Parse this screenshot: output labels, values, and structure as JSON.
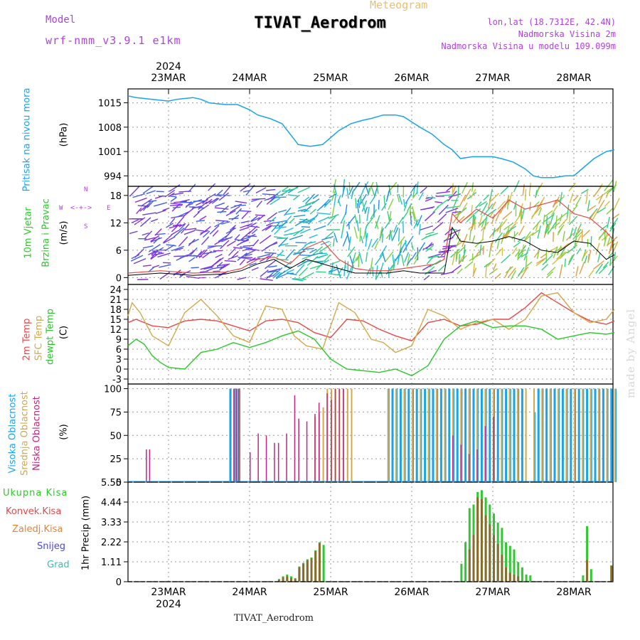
{
  "header": {
    "model_label": "Model",
    "model_name": "wrf-nmm_v3.9.1  e1km",
    "title": "TIVAT_Aerodrom",
    "meteogram": "Meteogram",
    "lonlat": "lon,lat (18.7312E, 42.4N)",
    "elev": "Nadmorska Visina 2m",
    "model_elev": "Nadmorska Visina u modelu 109.099m",
    "year_top": "2024",
    "year_bottom": "2024",
    "footer_station": "TIVAT_Aerodrom",
    "credit": "made by Angel"
  },
  "date_labels": [
    "23MAR",
    "24MAR",
    "25MAR",
    "26MAR",
    "27MAR",
    "28MAR"
  ],
  "panel_labels": {
    "pressure": [
      "Pritisak na nivou mora",
      "(hPa)"
    ],
    "wind": [
      "10m Vjetar",
      "Brzina i Pravac",
      "(m/s)"
    ],
    "wind_compass": {
      "n": "N",
      "s": "S",
      "w": "W",
      "e": "E"
    },
    "temp": [
      "2m Temp",
      "SFC Temp",
      "dewpt Temp",
      "(C)"
    ],
    "cloud": [
      "Visoka Oblacnost",
      "Srednja Oblacnost",
      "Niska Oblacnost",
      "(%)"
    ],
    "precip": [
      "Ukupna Kisa",
      "Konvek.Kisa",
      "Zaledj.Kisa",
      "Snijeg",
      "Grad",
      "1hr Precip (mm)"
    ]
  },
  "colors": {
    "pressure": "#1aa3e8",
    "temp2m": "#e84848",
    "sfc": "#d4a848",
    "dew": "#28c828",
    "total_rain": "#30c830",
    "conv_rain": "#e84848",
    "freeze_rain": "#f08030",
    "snow": "#4848e0",
    "hail": "#30c0c0",
    "high_cloud": "#1aa3e8",
    "mid_cloud": "#d4a848",
    "low_cloud": "#c02880",
    "purple": "#b040e0"
  },
  "chart_data": [
    {
      "type": "line",
      "panel": "pressure",
      "x_range_days": [
        "22MAR 12UTC",
        "28MAR 12UTC"
      ],
      "yticks": [
        994,
        1001,
        1008,
        1015
      ],
      "ylim": [
        991,
        1019
      ],
      "series": [
        {
          "x": [
            0,
            0.1,
            0.3,
            0.5,
            0.6,
            0.8,
            0.9,
            1.0,
            1.2,
            1.35,
            1.5,
            1.6,
            1.75,
            1.9,
            2.0,
            2.1,
            2.25,
            2.4,
            2.5,
            2.6,
            2.75,
            2.9,
            3.0,
            3.15,
            3.3,
            3.4,
            3.5,
            3.6,
            3.75,
            3.9,
            4.0,
            4.1,
            4.25,
            4.35,
            4.5,
            4.6,
            4.75,
            4.9,
            5.0,
            5.1,
            5.25,
            5.4,
            5.5,
            5.6,
            5.75,
            5.9,
            6.0
          ],
          "y": [
            1017,
            1016.5,
            1016,
            1015.5,
            1016,
            1016.5,
            1016,
            1015,
            1014.5,
            1014.5,
            1013,
            1011.5,
            1010.5,
            1009,
            1006,
            1003,
            1002.5,
            1003,
            1005,
            1007,
            1009,
            1010,
            1010.5,
            1011.5,
            1011.5,
            1011,
            1009.5,
            1008,
            1006,
            1003,
            1001.5,
            999,
            999.5,
            999.5,
            999.5,
            999,
            998,
            996,
            994,
            993.5,
            993.5,
            994,
            994,
            996,
            999,
            1001,
            1001.5
          ]
        }
      ]
    },
    {
      "type": "line",
      "panel": "wind",
      "yticks": [
        0,
        6,
        12,
        18
      ],
      "ylim": [
        -1.5,
        20
      ],
      "series": [
        {
          "name": "wind_speed_max",
          "x": [
            0,
            0.4,
            0.8,
            1.2,
            1.4,
            1.6,
            1.8,
            2.0,
            2.2,
            2.4,
            2.6,
            2.8,
            3.0,
            3.2,
            3.4,
            3.6,
            3.8,
            3.9,
            4.0,
            4.1,
            4.3,
            4.5,
            4.7,
            4.9,
            5.1,
            5.3,
            5.5,
            5.7,
            5.9,
            6.0
          ],
          "y": [
            1,
            1.5,
            1,
            1.2,
            2,
            4,
            4.5,
            3,
            6.5,
            8,
            4,
            2,
            1.5,
            1.5,
            2,
            2.5,
            3,
            4,
            14,
            12,
            15,
            13,
            17,
            15,
            16,
            17,
            14,
            13,
            10,
            8
          ]
        },
        {
          "name": "wind_speed_mean",
          "x": [
            0,
            0.4,
            0.8,
            1.2,
            1.4,
            1.6,
            1.8,
            2.0,
            2.2,
            2.4,
            2.6,
            2.8,
            3.0,
            3.2,
            3.4,
            3.6,
            3.8,
            3.9,
            4.0,
            4.1,
            4.3,
            4.5,
            4.7,
            4.9,
            5.1,
            5.3,
            5.5,
            5.7,
            5.9,
            6.0
          ],
          "y": [
            0.5,
            1,
            0.5,
            0.8,
            1.5,
            3,
            4,
            2,
            4,
            3,
            2,
            1,
            1,
            1,
            1.5,
            1,
            1,
            1,
            11,
            8,
            7.5,
            8,
            9,
            8,
            6,
            5.5,
            8,
            7.5,
            4,
            5
          ]
        }
      ]
    },
    {
      "type": "line",
      "panel": "temperature",
      "yticks": [
        -3,
        0,
        3,
        6,
        9,
        12,
        15,
        18,
        21,
        24
      ],
      "ylim": [
        -4.5,
        25.5
      ],
      "series": [
        {
          "name": "2m",
          "x": [
            0,
            0.1,
            0.3,
            0.5,
            0.7,
            0.9,
            1.1,
            1.3,
            1.5,
            1.7,
            1.9,
            2.1,
            2.3,
            2.5,
            2.7,
            2.9,
            3.1,
            3.3,
            3.5,
            3.7,
            3.9,
            4.1,
            4.3,
            4.5,
            4.7,
            4.9,
            5.1,
            5.3,
            5.5,
            5.7,
            5.9,
            6.0
          ],
          "y": [
            14,
            15,
            13,
            12.5,
            14.5,
            15,
            14.5,
            13,
            11.5,
            14.5,
            15,
            14,
            11,
            9.5,
            15,
            14.5,
            12,
            10,
            8.5,
            14,
            15,
            13,
            13.5,
            15,
            15,
            18.5,
            23,
            20,
            17,
            14.5,
            13.5,
            14.5
          ]
        },
        {
          "name": "SFC",
          "x": [
            0,
            0.05,
            0.15,
            0.3,
            0.5,
            0.7,
            0.9,
            1.1,
            1.3,
            1.5,
            1.7,
            1.9,
            2.05,
            2.2,
            2.4,
            2.6,
            2.8,
            3.0,
            3.15,
            3.3,
            3.5,
            3.7,
            3.9,
            4.1,
            4.3,
            4.5,
            4.7,
            4.9,
            5.1,
            5.3,
            5.5,
            5.7,
            5.9,
            6.0
          ],
          "y": [
            16,
            20,
            17,
            10,
            7,
            17,
            21,
            16,
            10,
            8,
            19,
            18,
            10,
            7,
            6,
            20,
            17,
            9,
            8,
            5,
            7,
            18,
            16,
            12,
            14,
            15,
            12,
            15,
            22,
            23,
            17,
            14,
            15,
            18
          ]
        },
        {
          "name": "dewpt",
          "x": [
            0,
            0.1,
            0.2,
            0.3,
            0.4,
            0.5,
            0.7,
            0.9,
            1.1,
            1.3,
            1.5,
            1.7,
            1.9,
            2.1,
            2.3,
            2.4,
            2.5,
            2.7,
            2.9,
            3.1,
            3.3,
            3.5,
            3.7,
            3.9,
            4.1,
            4.3,
            4.5,
            4.7,
            4.9,
            5.1,
            5.3,
            5.5,
            5.7,
            5.9,
            6.0
          ],
          "y": [
            7,
            9,
            7.5,
            4,
            2,
            0.5,
            0,
            5,
            6,
            8,
            6.5,
            8,
            10,
            11.5,
            9,
            6,
            3,
            0,
            -0.5,
            -1,
            0,
            -2,
            1,
            9,
            13,
            14.5,
            12.5,
            13,
            13,
            12,
            9,
            10,
            11,
            10.5,
            11
          ]
        }
      ]
    },
    {
      "type": "bar",
      "panel": "cloud",
      "yticks": [
        0,
        25,
        50,
        75,
        100
      ],
      "ylim": [
        0,
        105
      ],
      "series": [
        {
          "name": "high",
          "x": [
            1.25,
            1.3,
            1.33,
            1.36,
            3.2,
            3.25,
            3.3,
            3.35,
            3.4,
            3.45,
            3.5,
            3.55,
            3.6,
            3.65,
            3.7,
            3.75,
            3.8,
            3.85,
            3.9,
            3.95,
            4.0,
            4.05,
            4.1,
            4.15,
            4.2,
            4.25,
            4.3,
            4.35,
            4.4,
            4.45,
            4.5,
            4.55,
            4.6,
            4.65,
            4.7,
            4.75,
            4.8,
            4.85,
            5.0,
            5.05,
            5.1,
            5.15,
            5.2,
            5.25,
            5.3,
            5.35,
            5.4,
            5.45,
            5.5,
            5.55,
            5.6,
            5.65,
            5.7,
            5.75,
            5.8,
            5.85,
            5.9,
            5.95,
            6.0
          ],
          "y": [
            100,
            100,
            100,
            100,
            100,
            100,
            100,
            100,
            100,
            100,
            100,
            100,
            100,
            100,
            100,
            100,
            100,
            100,
            100,
            100,
            100,
            100,
            100,
            100,
            100,
            100,
            100,
            100,
            100,
            100,
            100,
            100,
            100,
            100,
            100,
            100,
            100,
            100,
            75,
            100,
            100,
            100,
            100,
            100,
            100,
            100,
            100,
            100,
            100,
            100,
            100,
            100,
            100,
            100,
            100,
            100,
            100,
            100,
            100
          ]
        },
        {
          "name": "mid",
          "x": [
            1.3,
            1.33,
            1.36,
            2.3,
            2.35,
            2.4,
            2.45,
            2.5,
            2.55,
            2.6,
            2.65,
            2.7,
            2.75,
            3.2,
            3.3,
            3.4,
            3.5,
            3.6,
            3.7,
            3.8,
            3.9,
            4.0,
            4.1,
            4.2,
            4.3,
            4.4,
            4.5,
            4.6,
            4.7,
            4.8,
            4.9,
            5.0,
            5.1,
            5.2,
            5.3,
            5.4,
            5.5,
            5.6,
            5.7,
            5.8,
            5.9,
            6.0
          ],
          "y": [
            100,
            100,
            100,
            70,
            75,
            80,
            100,
            100,
            100,
            100,
            100,
            100,
            100,
            100,
            100,
            100,
            100,
            100,
            100,
            100,
            100,
            100,
            100,
            100,
            100,
            100,
            100,
            100,
            100,
            100,
            100,
            100,
            100,
            100,
            100,
            100,
            100,
            100,
            100,
            100,
            100,
            100
          ]
        },
        {
          "name": "low",
          "x": [
            0.22,
            0.26,
            1.3,
            1.33,
            1.36,
            1.5,
            1.6,
            1.7,
            1.8,
            1.85,
            1.95,
            2.05,
            2.1,
            2.2,
            2.3,
            2.35,
            2.45,
            2.5,
            2.55,
            2.6,
            2.65,
            4.0,
            4.1,
            4.2,
            4.3,
            4.4,
            4.5
          ],
          "y": [
            35,
            35,
            100,
            100,
            100,
            32,
            52,
            50,
            42,
            42,
            52,
            93,
            68,
            65,
            73,
            85,
            95,
            88,
            100,
            100,
            100,
            50,
            40,
            30,
            35,
            60,
            70
          ]
        }
      ]
    },
    {
      "type": "bar",
      "panel": "precip",
      "yticks": [
        0,
        1.11,
        2.22,
        3.33,
        4.44,
        5.55
      ],
      "ylim": [
        0,
        5.55
      ],
      "series": [
        {
          "name": "total",
          "x": [
            1.85,
            1.9,
            1.95,
            2.0,
            2.05,
            2.1,
            2.15,
            2.2,
            2.25,
            2.3,
            2.35,
            2.4,
            4.1,
            4.15,
            4.2,
            4.25,
            4.3,
            4.35,
            4.4,
            4.45,
            4.5,
            4.55,
            4.6,
            4.65,
            4.7,
            4.75,
            4.8,
            4.85,
            4.9,
            4.95,
            5.6,
            5.65,
            5.7,
            5.95,
            6.0,
            6.05,
            6.1,
            6.15
          ],
          "y": [
            0.15,
            0.3,
            0.4,
            0.3,
            0.2,
            0.85,
            1.05,
            1.25,
            1.35,
            1.75,
            2.2,
            2.05,
            1.0,
            2.2,
            4.1,
            4.3,
            5.0,
            5.1,
            4.7,
            4.3,
            3.8,
            3.3,
            3.0,
            2.2,
            2.0,
            1.8,
            1.1,
            0.8,
            0.4,
            0.35,
            0.35,
            3.1,
            0.7,
            0.9,
            1.05,
            0.95,
            0.7,
            0.4
          ]
        },
        {
          "name": "convective",
          "x": [
            1.85,
            1.9,
            1.95,
            2.0,
            2.05,
            2.1,
            2.15,
            2.2,
            2.25,
            2.3,
            2.35,
            4.2,
            4.25,
            4.3,
            4.35,
            4.4,
            4.45,
            4.5,
            4.55,
            4.6,
            4.65,
            4.7,
            4.75,
            4.8,
            5.65,
            5.95,
            6.0,
            6.05,
            6.1
          ],
          "y": [
            0.1,
            0.25,
            0.3,
            0.2,
            0.15,
            0.8,
            1.0,
            1.2,
            1.3,
            1.7,
            2.15,
            1.8,
            2.6,
            4.7,
            4.6,
            3.7,
            3.2,
            2.6,
            2.1,
            1.5,
            0.8,
            0.5,
            0.4,
            0.3,
            1.2,
            0.9,
            1.0,
            0.8,
            0.6
          ]
        }
      ]
    }
  ]
}
